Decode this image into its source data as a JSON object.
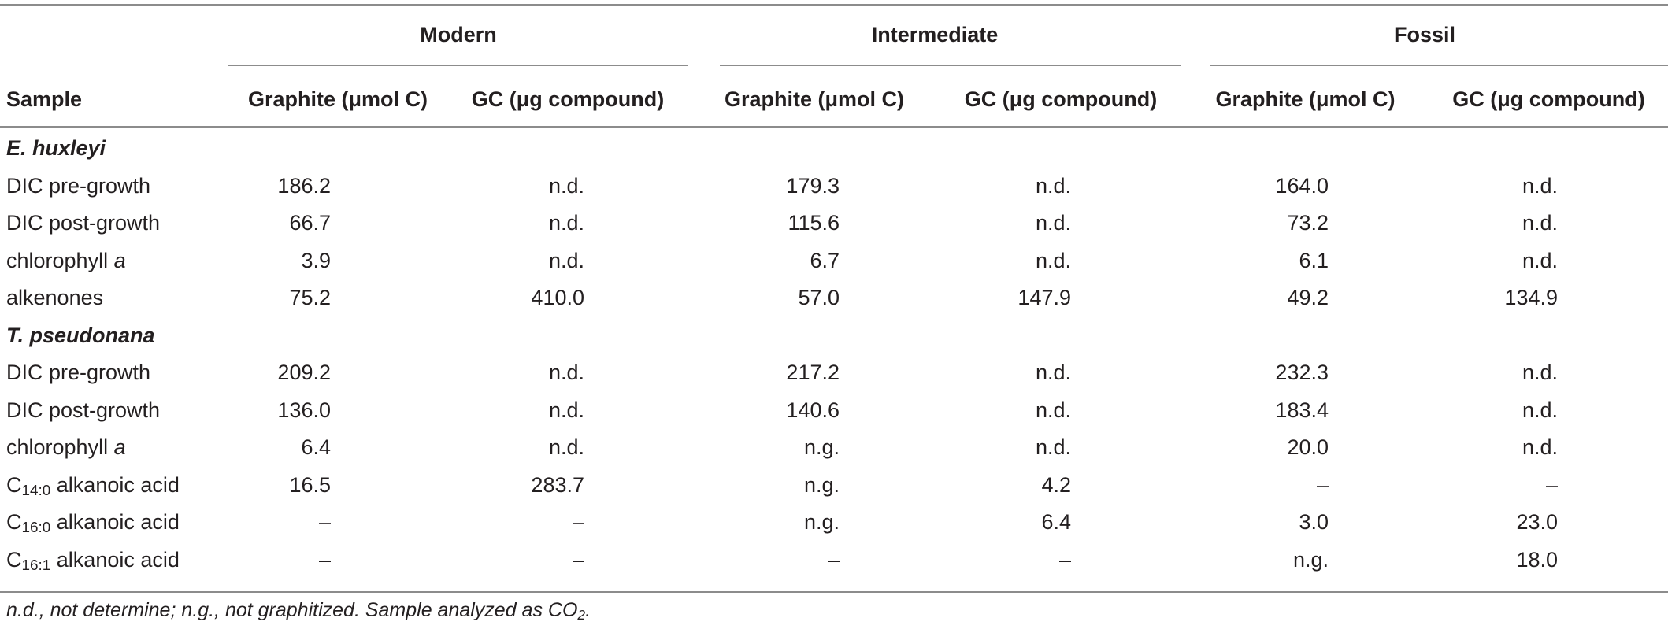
{
  "groups": [
    "Modern",
    "Intermediate",
    "Fossil"
  ],
  "columns": {
    "sample": "Sample",
    "graphite": "Graphite (μmol C)",
    "gc": "GC (μg compound)"
  },
  "species": [
    {
      "name": "E. huxleyi",
      "rows": [
        {
          "pre": "DIC pre-growth",
          "sub": "",
          "post": "",
          "values": [
            "186.2",
            "n.d.",
            "179.3",
            "n.d.",
            "164.0",
            "n.d."
          ]
        },
        {
          "pre": "DIC post-growth",
          "sub": "",
          "post": "",
          "values": [
            "66.7",
            "n.d.",
            "115.6",
            "n.d.",
            "73.2",
            "n.d."
          ]
        },
        {
          "pre": "chlorophyll ",
          "sub": "",
          "post": "",
          "ital": "a",
          "values": [
            "3.9",
            "n.d.",
            "6.7",
            "n.d.",
            "6.1",
            "n.d."
          ]
        },
        {
          "pre": "alkenones",
          "sub": "",
          "post": "",
          "values": [
            "75.2",
            "410.0",
            "57.0",
            "147.9",
            "49.2",
            "134.9"
          ]
        }
      ]
    },
    {
      "name": "T. pseudonana",
      "rows": [
        {
          "pre": "DIC pre-growth",
          "sub": "",
          "post": "",
          "values": [
            "209.2",
            "n.d.",
            "217.2",
            "n.d.",
            "232.3",
            "n.d."
          ]
        },
        {
          "pre": "DIC post-growth",
          "sub": "",
          "post": "",
          "values": [
            "136.0",
            "n.d.",
            "140.6",
            "n.d.",
            "183.4",
            "n.d."
          ]
        },
        {
          "pre": "chlorophyll ",
          "sub": "",
          "post": "",
          "ital": "a",
          "values": [
            "6.4",
            "n.d.",
            "n.g.",
            "n.d.",
            "20.0",
            "n.d."
          ]
        },
        {
          "pre": "C",
          "sub": "14:0",
          "post": " alkanoic acid",
          "values": [
            "16.5",
            "283.7",
            "n.g.",
            "4.2",
            "–",
            "–"
          ]
        },
        {
          "pre": "C",
          "sub": "16:0",
          "post": " alkanoic acid",
          "values": [
            "–",
            "–",
            "n.g.",
            "6.4",
            "3.0",
            "23.0"
          ]
        },
        {
          "pre": "C",
          "sub": "16:1",
          "post": " alkanoic acid",
          "values": [
            "–",
            "–",
            "–",
            "–",
            "n.g.",
            "18.0"
          ]
        }
      ]
    }
  ],
  "footnote": {
    "text": "n.d., not determine; n.g., not graphitized. Sample analyzed as CO",
    "sub": "2",
    "end": "."
  }
}
